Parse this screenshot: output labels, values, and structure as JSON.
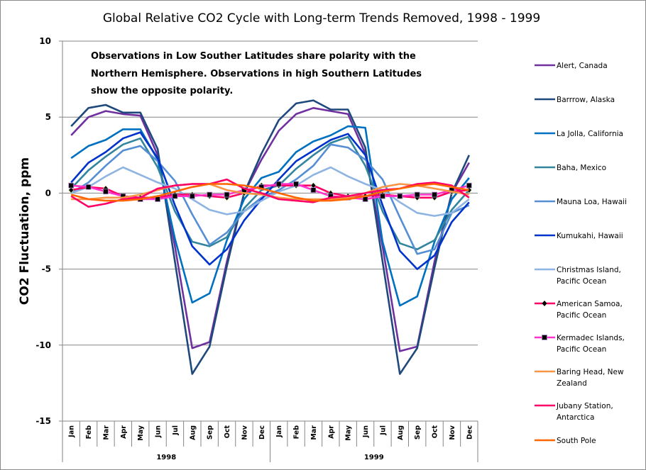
{
  "chart_data": {
    "type": "line",
    "title": "Global Relative CO2 Cycle with Long-term Trends Removed, 1998 - 1999",
    "annotation": [
      "Observations in Low Souther Latitudes share polarity with the",
      "Northern Hemisphere.   Observations in high Southern Latitudes",
      "show the opposite polarity."
    ],
    "xlabel": "",
    "ylabel": "CO2 Fluctuation, ppm",
    "ylim": [
      -15,
      10
    ],
    "yticks": [
      10,
      5,
      0,
      -5,
      -10,
      -15
    ],
    "ytick_labels": [
      "10",
      "5",
      "0",
      "-5",
      "-10",
      "-15"
    ],
    "grid": "horizontal major gridlines",
    "legend_position": "right",
    "categories": [
      "Jan",
      "Feb",
      "Mar",
      "Apr",
      "May",
      "Jun",
      "Jul",
      "Aug",
      "Sep",
      "Oct",
      "Nov",
      "Dec",
      "Jan",
      "Feb",
      "Mar",
      "Apr",
      "May",
      "Jun",
      "Jul",
      "Aug",
      "Sep",
      "Oct",
      "Nov",
      "Dec"
    ],
    "category_groups": [
      {
        "label": "1998",
        "count": 12
      },
      {
        "label": "1999",
        "count": 12
      }
    ],
    "series": [
      {
        "name": "Alert, Canada",
        "color": "#7030a0",
        "marker": "none",
        "values": [
          3.8,
          5.0,
          5.4,
          5.2,
          5.1,
          2.5,
          -3.5,
          -10.2,
          -9.8,
          -4.5,
          0.0,
          2.2,
          4.1,
          5.2,
          5.6,
          5.4,
          5.2,
          2.6,
          -3.5,
          -10.4,
          -10.1,
          -4.5,
          0.0,
          2.0
        ]
      },
      {
        "name": "Barrrow, Alaska",
        "color": "#1f497d",
        "marker": "none",
        "values": [
          4.4,
          5.6,
          5.8,
          5.3,
          5.3,
          2.9,
          -4.5,
          -11.9,
          -10.1,
          -4.8,
          0.0,
          2.6,
          4.8,
          5.9,
          6.1,
          5.5,
          5.5,
          3.0,
          -4.5,
          -11.9,
          -10.2,
          -4.9,
          0.0,
          2.5
        ]
      },
      {
        "name": "La Jolla, California",
        "color": "#0070c0",
        "marker": "none",
        "values": [
          2.3,
          3.1,
          3.5,
          4.2,
          4.2,
          2.2,
          -3.0,
          -7.2,
          -6.6,
          -3.1,
          -0.4,
          1.0,
          1.4,
          2.7,
          3.4,
          3.8,
          4.4,
          4.3,
          -3.2,
          -7.4,
          -6.8,
          -3.2,
          -0.4,
          1.0
        ]
      },
      {
        "name": "Baha, Mexico",
        "color": "#31859c",
        "marker": "none",
        "values": [
          0.3,
          1.5,
          2.4,
          3.2,
          3.6,
          1.7,
          -1.2,
          -3.2,
          -3.5,
          -2.9,
          -1.0,
          0.2,
          0.5,
          1.6,
          2.5,
          3.3,
          3.7,
          1.8,
          -1.2,
          -3.3,
          -3.7,
          -3.1,
          -1.1,
          0.2
        ]
      },
      {
        "name": "Mauna Loa, Hawaii",
        "color": "#558ed5",
        "marker": "none",
        "values": [
          0.0,
          0.7,
          1.8,
          2.8,
          3.1,
          2.1,
          0.8,
          -1.4,
          -3.4,
          -2.6,
          -1.2,
          -0.3,
          0.2,
          0.9,
          1.8,
          3.2,
          3.0,
          2.2,
          0.9,
          -1.6,
          -4.0,
          -3.7,
          -1.3,
          -0.8
        ]
      },
      {
        "name": "Kumukahi, Hawaii",
        "color": "#0033cc",
        "marker": "none",
        "values": [
          0.7,
          2.0,
          2.7,
          3.6,
          4.0,
          2.3,
          -0.8,
          -3.5,
          -4.7,
          -3.7,
          -1.8,
          -0.4,
          0.9,
          2.1,
          2.8,
          3.5,
          3.9,
          2.5,
          -0.8,
          -3.8,
          -5.0,
          -4.1,
          -1.9,
          -0.6
        ]
      },
      {
        "name": "Christmas Island, Pacific Ocean",
        "color": "#8db4e2",
        "marker": "none",
        "values": [
          0.0,
          0.4,
          1.1,
          1.7,
          1.2,
          0.7,
          0.3,
          -0.4,
          -1.1,
          -1.4,
          -1.2,
          -0.5,
          0.1,
          0.5,
          1.2,
          1.7,
          1.1,
          0.6,
          0.2,
          -0.6,
          -1.3,
          -1.5,
          -1.3,
          -0.4
        ]
      },
      {
        "name": "American Samoa, Pacific Ocean",
        "color": "#ff0066",
        "marker": "diamond",
        "values": [
          0.2,
          0.4,
          0.3,
          -0.2,
          -0.3,
          -0.3,
          -0.1,
          -0.1,
          -0.2,
          -0.3,
          0.0,
          0.5,
          0.5,
          0.5,
          0.5,
          0.0,
          -0.2,
          -0.2,
          -0.1,
          -0.2,
          -0.3,
          -0.3,
          0.1,
          0.2
        ]
      },
      {
        "name": "Kermadec Islands, Pacific Ocean",
        "color": "#ff33cc",
        "marker": "square",
        "values": [
          0.5,
          0.4,
          0.1,
          -0.2,
          -0.4,
          -0.4,
          -0.2,
          -0.2,
          -0.1,
          -0.1,
          0.2,
          0.4,
          0.6,
          0.6,
          0.2,
          -0.2,
          -0.3,
          -0.4,
          -0.2,
          -0.2,
          -0.1,
          -0.1,
          0.2,
          0.5
        ]
      },
      {
        "name": "Baring Head, New Zealand",
        "color": "#f79646",
        "marker": "none",
        "values": [
          -0.4,
          -0.4,
          -0.3,
          -0.3,
          -0.1,
          0.2,
          0.5,
          0.6,
          0.6,
          0.2,
          0.0,
          -0.1,
          -0.3,
          -0.4,
          -0.4,
          -0.4,
          -0.3,
          0.0,
          0.4,
          0.6,
          0.5,
          0.3,
          0.1,
          -0.1
        ]
      },
      {
        "name": "Jubany Station, Antarctica",
        "color": "#ff0066",
        "marker": "none",
        "values": [
          -0.2,
          -0.9,
          -0.7,
          -0.4,
          -0.3,
          0.3,
          0.5,
          0.6,
          0.6,
          0.9,
          0.3,
          0.0,
          -0.4,
          -0.5,
          -0.6,
          -0.3,
          -0.2,
          0.0,
          0.2,
          0.3,
          0.6,
          0.7,
          0.5,
          -0.3
        ]
      },
      {
        "name": "South Pole",
        "color": "#ff6600",
        "marker": "none",
        "values": [
          -0.1,
          -0.4,
          -0.5,
          -0.5,
          -0.4,
          -0.2,
          0.1,
          0.4,
          0.6,
          0.6,
          0.5,
          0.3,
          0.0,
          -0.3,
          -0.5,
          -0.5,
          -0.4,
          -0.2,
          0.1,
          0.3,
          0.5,
          0.6,
          0.4,
          0.2
        ]
      }
    ]
  }
}
